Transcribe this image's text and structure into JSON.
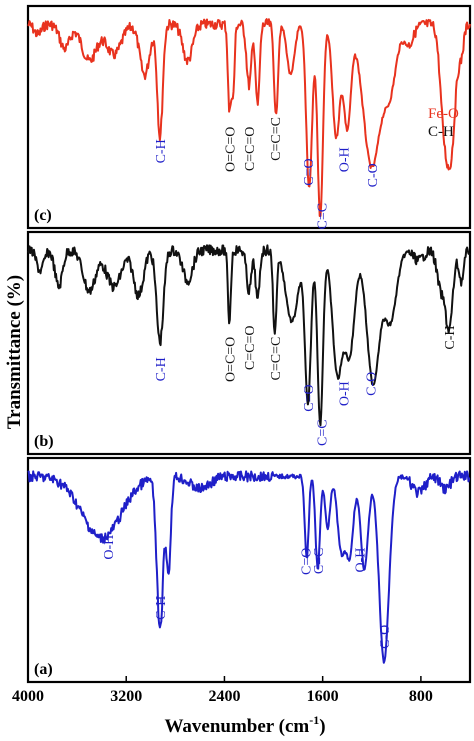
{
  "chart_data": {
    "type": "line",
    "xlabel_main": "Wavenumber (cm",
    "xlabel_sup": "-1",
    "xlabel_close": ")",
    "ylabel": "Transmittance (%)",
    "x_ticks": [
      "4000",
      "3200",
      "2400",
      "1600",
      "800"
    ],
    "x_tick_values": [
      4000,
      3200,
      2400,
      1600,
      800
    ],
    "xlim": [
      4000,
      400
    ],
    "colors": {
      "a": "#1f1fc8",
      "b": "#111111",
      "c": "#e8321e",
      "blue_label": "#1f1fc8",
      "red_label": "#e8321e",
      "black_label": "#111111"
    },
    "panels": [
      {
        "id": "c",
        "panel_label": "(c)",
        "series_color": "c",
        "baseline": 0.06,
        "peaks": [
          {
            "x": 3920,
            "depth": 0.05,
            "w": 30
          },
          {
            "x": 3700,
            "depth": 0.12,
            "w": 40
          },
          {
            "x": 3500,
            "depth": 0.18,
            "w": 60
          },
          {
            "x": 3300,
            "depth": 0.15,
            "w": 60
          },
          {
            "x": 3050,
            "depth": 0.25,
            "w": 40
          },
          {
            "x": 2925,
            "depth": 0.55,
            "w": 22
          },
          {
            "x": 2700,
            "depth": 0.18,
            "w": 40
          },
          {
            "x": 2360,
            "depth": 0.42,
            "w": 12
          },
          {
            "x": 2330,
            "depth": 0.35,
            "w": 12
          },
          {
            "x": 2200,
            "depth": 0.3,
            "w": 20
          },
          {
            "x": 2130,
            "depth": 0.4,
            "w": 16
          },
          {
            "x": 1980,
            "depth": 0.45,
            "w": 16
          },
          {
            "x": 1860,
            "depth": 0.25,
            "w": 30
          },
          {
            "x": 1710,
            "depth": 0.8,
            "w": 24
          },
          {
            "x": 1620,
            "depth": 0.95,
            "w": 22
          },
          {
            "x": 1490,
            "depth": 0.55,
            "w": 30
          },
          {
            "x": 1400,
            "depth": 0.5,
            "w": 30
          },
          {
            "x": 1200,
            "depth": 0.7,
            "w": 70
          },
          {
            "x": 1050,
            "depth": 0.3,
            "w": 50
          },
          {
            "x": 900,
            "depth": 0.1,
            "w": 40
          },
          {
            "x": 620,
            "depth": 0.3,
            "w": 30
          },
          {
            "x": 560,
            "depth": 0.65,
            "w": 40
          },
          {
            "x": 470,
            "depth": 0.12,
            "w": 20
          }
        ],
        "labels": [
          {
            "text": "C-H",
            "x": 2925,
            "color": "blue_label",
            "pos": 0.8
          },
          {
            "text": "O=C=O",
            "x": 2360,
            "color": "black_label",
            "pos": 0.72
          },
          {
            "text": "C=C=O",
            "x": 2200,
            "color": "black_label",
            "pos": 0.72
          },
          {
            "text": "C=C=C",
            "x": 1990,
            "color": "black_label",
            "pos": 0.66
          },
          {
            "text": "C=O",
            "x": 1720,
            "color": "blue_label",
            "pos": 0.92
          },
          {
            "text": "C=C",
            "x": 1610,
            "color": "blue_label",
            "pos": 1.2
          },
          {
            "text": "O-H",
            "x": 1430,
            "color": "blue_label",
            "pos": 0.85
          },
          {
            "text": "C-O",
            "x": 1200,
            "color": "blue_label",
            "pos": 0.95
          }
        ],
        "corner_labels": [
          {
            "text": "Fe-O",
            "x": 580,
            "color": "red_label",
            "pos": 0.52
          },
          {
            "text": "C-H",
            "x": 580,
            "color": "black_label",
            "pos": 0.62
          }
        ]
      },
      {
        "id": "b",
        "panel_label": "(b)",
        "series_color": "b",
        "baseline": 0.06,
        "peaks": [
          {
            "x": 3900,
            "depth": 0.1,
            "w": 30
          },
          {
            "x": 3750,
            "depth": 0.18,
            "w": 30
          },
          {
            "x": 3500,
            "depth": 0.2,
            "w": 50
          },
          {
            "x": 3300,
            "depth": 0.18,
            "w": 60
          },
          {
            "x": 3100,
            "depth": 0.22,
            "w": 40
          },
          {
            "x": 2925,
            "depth": 0.45,
            "w": 28
          },
          {
            "x": 2700,
            "depth": 0.15,
            "w": 40
          },
          {
            "x": 2360,
            "depth": 0.35,
            "w": 12
          },
          {
            "x": 2200,
            "depth": 0.2,
            "w": 20
          },
          {
            "x": 2130,
            "depth": 0.25,
            "w": 16
          },
          {
            "x": 1990,
            "depth": 0.4,
            "w": 14
          },
          {
            "x": 1850,
            "depth": 0.35,
            "w": 50
          },
          {
            "x": 1720,
            "depth": 0.75,
            "w": 24
          },
          {
            "x": 1620,
            "depth": 0.85,
            "w": 22
          },
          {
            "x": 1480,
            "depth": 0.6,
            "w": 40
          },
          {
            "x": 1380,
            "depth": 0.5,
            "w": 40
          },
          {
            "x": 1190,
            "depth": 0.65,
            "w": 50
          },
          {
            "x": 1050,
            "depth": 0.35,
            "w": 50
          },
          {
            "x": 820,
            "depth": 0.05,
            "w": 40
          },
          {
            "x": 640,
            "depth": 0.18,
            "w": 30
          },
          {
            "x": 570,
            "depth": 0.38,
            "w": 30
          },
          {
            "x": 470,
            "depth": 0.15,
            "w": 20
          }
        ],
        "labels": [
          {
            "text": "C-H",
            "x": 2925,
            "color": "blue_label",
            "pos": 0.75
          },
          {
            "text": "O=C=O",
            "x": 2360,
            "color": "black_label",
            "pos": 0.62
          },
          {
            "text": "C=C=O",
            "x": 2200,
            "color": "black_label",
            "pos": 0.55
          },
          {
            "text": "C=C=C",
            "x": 1990,
            "color": "black_label",
            "pos": 0.62
          },
          {
            "text": "C=O",
            "x": 1720,
            "color": "blue_label",
            "pos": 0.92
          },
          {
            "text": "C=C",
            "x": 1610,
            "color": "blue_label",
            "pos": 1.14
          },
          {
            "text": "O-H",
            "x": 1430,
            "color": "blue_label",
            "pos": 0.9
          },
          {
            "text": "C-O",
            "x": 1210,
            "color": "blue_label",
            "pos": 0.84
          },
          {
            "text": "C-H",
            "x": 570,
            "color": "black_label",
            "pos": 0.55
          }
        ],
        "corner_labels": []
      },
      {
        "id": "a",
        "panel_label": "(a)",
        "series_color": "a",
        "baseline": 0.06,
        "peaks": [
          {
            "x": 3400,
            "depth": 0.3,
            "w": 160
          },
          {
            "x": 2925,
            "depth": 0.75,
            "w": 26
          },
          {
            "x": 2855,
            "depth": 0.45,
            "w": 18
          },
          {
            "x": 2600,
            "depth": 0.06,
            "w": 80
          },
          {
            "x": 1730,
            "depth": 0.4,
            "w": 16
          },
          {
            "x": 1640,
            "depth": 0.45,
            "w": 18
          },
          {
            "x": 1560,
            "depth": 0.25,
            "w": 20
          },
          {
            "x": 1450,
            "depth": 0.35,
            "w": 30
          },
          {
            "x": 1380,
            "depth": 0.38,
            "w": 30
          },
          {
            "x": 1260,
            "depth": 0.45,
            "w": 30
          },
          {
            "x": 1100,
            "depth": 0.9,
            "w": 40
          },
          {
            "x": 820,
            "depth": 0.08,
            "w": 50
          },
          {
            "x": 600,
            "depth": 0.06,
            "w": 40
          }
        ],
        "labels": [
          {
            "text": "O-H",
            "x": 3350,
            "color": "blue_label",
            "pos": 0.44
          },
          {
            "text": "C-H",
            "x": 2925,
            "color": "blue_label",
            "pos": 0.82
          },
          {
            "text": "C=O",
            "x": 1740,
            "color": "blue_label",
            "pos": 0.52
          },
          {
            "text": "C=C",
            "x": 1640,
            "color": "blue_label",
            "pos": 0.52
          },
          {
            "text": "O-H",
            "x": 1300,
            "color": "blue_label",
            "pos": 0.52
          },
          {
            "text": "C-O",
            "x": 1100,
            "color": "blue_label",
            "pos": 1.0
          }
        ],
        "corner_labels": []
      }
    ]
  }
}
